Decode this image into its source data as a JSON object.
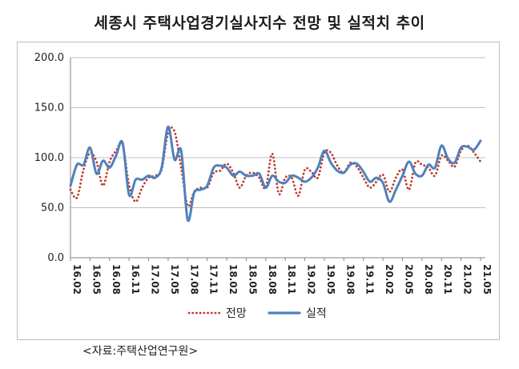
{
  "title": "세종시 주택사업경기실사지수 전망 및 실적치 추이",
  "source": "<자료:주택산업연구원>",
  "colors": {
    "forecast": "#c0392b",
    "actual": "#4f81bd",
    "grid": "#bfbfbf",
    "axis": "#808080"
  },
  "chart_data": {
    "type": "line",
    "title": "세종시 주택사업경기실사지수 전망 및 실적치 추이",
    "ylim": [
      0,
      200
    ],
    "yticks": [
      "0.0",
      "50.0",
      "100.0",
      "150.0",
      "200.0"
    ],
    "xtick_labels": [
      "16.02",
      "16.05",
      "16.08",
      "16.11",
      "17.02",
      "17.05",
      "17.08",
      "17.11",
      "18.02",
      "18.05",
      "18.08",
      "18.11",
      "19.02",
      "19.05",
      "19.08",
      "19.11",
      "20.02",
      "20.05",
      "20.08",
      "20.11",
      "21.02",
      "21.05"
    ],
    "legend_position": "bottom",
    "grid": "horizontal",
    "x": [
      "16.02",
      "16.03",
      "16.04",
      "16.05",
      "16.06",
      "16.07",
      "16.08",
      "16.09",
      "16.10",
      "16.11",
      "16.12",
      "17.01",
      "17.02",
      "17.03",
      "17.04",
      "17.05",
      "17.06",
      "17.07",
      "17.08",
      "17.09",
      "17.10",
      "17.11",
      "17.12",
      "18.01",
      "18.02",
      "18.03",
      "18.04",
      "18.05",
      "18.06",
      "18.07",
      "18.08",
      "18.09",
      "18.10",
      "18.11",
      "18.12",
      "19.01",
      "19.02",
      "19.03",
      "19.04",
      "19.05",
      "19.06",
      "19.07",
      "19.08",
      "19.09",
      "19.10",
      "19.11",
      "19.12",
      "20.01",
      "20.02",
      "20.03",
      "20.04",
      "20.05",
      "20.06",
      "20.07",
      "20.08",
      "20.09",
      "20.10",
      "20.11",
      "20.12",
      "21.01",
      "21.02",
      "21.03",
      "21.04",
      "21.05"
    ],
    "series": [
      {
        "name": "전망",
        "style": "dotted",
        "color": "#c0392b",
        "values": [
          68,
          60,
          88,
          105,
          96,
          72,
          96,
          107,
          113,
          73,
          56,
          70,
          80,
          82,
          88,
          125,
          126,
          90,
          52,
          66,
          70,
          70,
          85,
          87,
          94,
          85,
          70,
          82,
          85,
          80,
          70,
          104,
          64,
          80,
          80,
          62,
          88,
          86,
          80,
          105,
          105,
          92,
          85,
          95,
          91,
          80,
          70,
          76,
          83,
          66,
          80,
          88,
          68,
          95,
          93,
          90,
          82,
          102,
          97,
          91,
          107,
          112,
          105,
          96
        ]
      },
      {
        "name": "실적",
        "style": "solid",
        "color": "#4f81bd",
        "values": [
          72,
          93,
          93,
          110,
          84,
          97,
          90,
          102,
          115,
          63,
          78,
          78,
          82,
          80,
          90,
          131,
          98,
          107,
          38,
          65,
          68,
          72,
          90,
          92,
          90,
          82,
          86,
          82,
          82,
          84,
          70,
          82,
          76,
          75,
          82,
          80,
          76,
          80,
          90,
          107,
          95,
          87,
          85,
          93,
          94,
          86,
          76,
          80,
          75,
          56,
          68,
          82,
          96,
          84,
          82,
          93,
          90,
          112,
          99,
          95,
          110,
          111,
          108,
          117
        ]
      }
    ]
  }
}
